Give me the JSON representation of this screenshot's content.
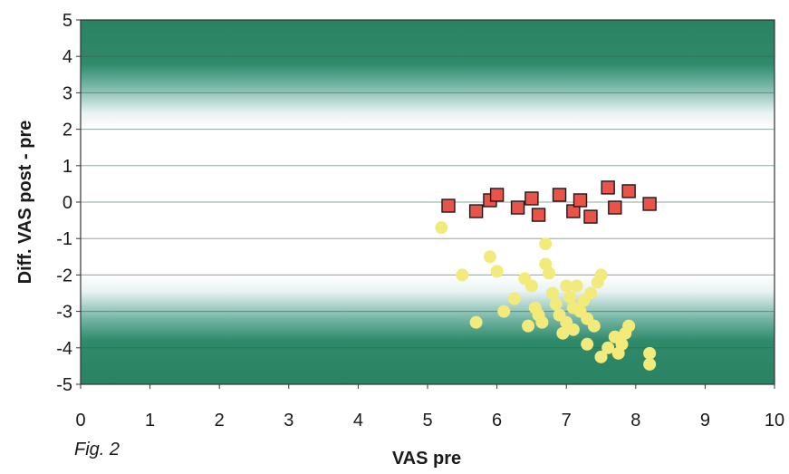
{
  "chart_data": {
    "type": "scatter",
    "xlabel": "VAS pre",
    "ylabel": "Diff. VAS post - pre",
    "xlim": [
      0,
      10
    ],
    "ylim": [
      -5,
      5
    ],
    "x_ticks": [
      0,
      1,
      2,
      3,
      4,
      5,
      6,
      7,
      8,
      9,
      10
    ],
    "y_ticks": [
      5,
      4,
      3,
      2,
      1,
      0,
      -1,
      -2,
      -3,
      -4,
      -5
    ],
    "gridlines": "horizontal",
    "background": "green bands above +2 and below -2, white in between",
    "annotation": "Fig. 2",
    "series": [
      {
        "marker": "square",
        "color": "#e8534a",
        "points": [
          [
            5.3,
            -0.1
          ],
          [
            5.7,
            -0.25
          ],
          [
            5.9,
            0.05
          ],
          [
            6.0,
            0.2
          ],
          [
            6.3,
            -0.15
          ],
          [
            6.5,
            0.1
          ],
          [
            6.6,
            -0.35
          ],
          [
            6.9,
            0.2
          ],
          [
            7.1,
            -0.25
          ],
          [
            7.2,
            0.05
          ],
          [
            7.35,
            -0.4
          ],
          [
            7.6,
            0.4
          ],
          [
            7.7,
            -0.15
          ],
          [
            7.9,
            0.3
          ],
          [
            8.2,
            -0.05
          ]
        ]
      },
      {
        "marker": "circle",
        "color": "#f2ea7a",
        "points": [
          [
            5.2,
            -0.7
          ],
          [
            5.5,
            -2.0
          ],
          [
            5.7,
            -3.3
          ],
          [
            5.9,
            -1.5
          ],
          [
            6.0,
            -1.9
          ],
          [
            6.1,
            -3.0
          ],
          [
            6.25,
            -2.65
          ],
          [
            6.4,
            -2.1
          ],
          [
            6.45,
            -3.4
          ],
          [
            6.5,
            -2.3
          ],
          [
            6.55,
            -2.9
          ],
          [
            6.6,
            -3.1
          ],
          [
            6.65,
            -3.3
          ],
          [
            6.7,
            -1.15
          ],
          [
            6.7,
            -1.7
          ],
          [
            6.75,
            -1.95
          ],
          [
            6.8,
            -2.5
          ],
          [
            6.85,
            -2.8
          ],
          [
            6.9,
            -3.1
          ],
          [
            6.95,
            -3.6
          ],
          [
            7.0,
            -2.3
          ],
          [
            7.0,
            -3.3
          ],
          [
            7.05,
            -2.6
          ],
          [
            7.1,
            -2.9
          ],
          [
            7.1,
            -3.5
          ],
          [
            7.15,
            -2.3
          ],
          [
            7.2,
            -3.0
          ],
          [
            7.25,
            -2.7
          ],
          [
            7.3,
            -3.2
          ],
          [
            7.3,
            -3.9
          ],
          [
            7.35,
            -2.5
          ],
          [
            7.4,
            -3.4
          ],
          [
            7.45,
            -2.2
          ],
          [
            7.5,
            -2.0
          ],
          [
            7.5,
            -4.25
          ],
          [
            7.6,
            -4.0
          ],
          [
            7.7,
            -3.7
          ],
          [
            7.75,
            -4.15
          ],
          [
            7.8,
            -3.9
          ],
          [
            7.85,
            -3.6
          ],
          [
            7.9,
            -3.4
          ],
          [
            8.2,
            -4.15
          ],
          [
            8.2,
            -4.45
          ]
        ]
      }
    ]
  }
}
